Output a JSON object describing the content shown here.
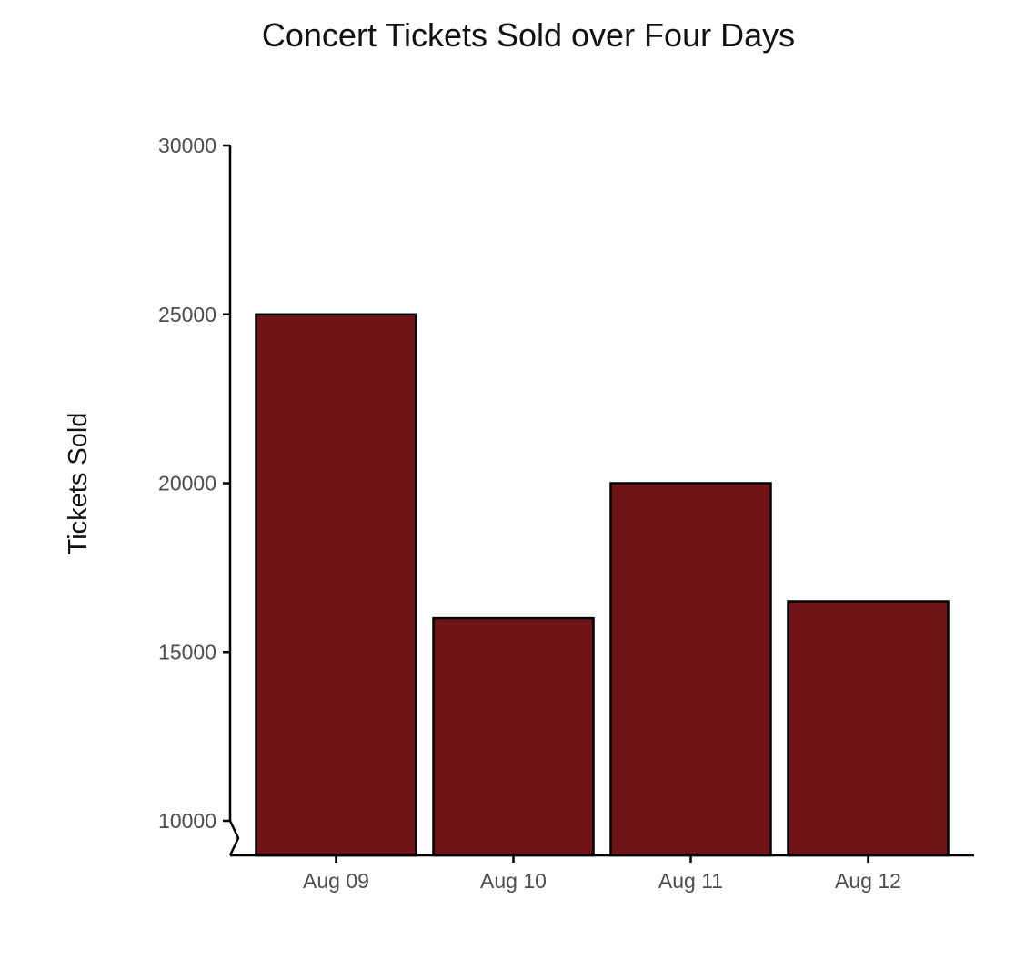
{
  "chart_data": {
    "type": "bar",
    "title": "Concert Tickets Sold over Four Days",
    "xlabel": "",
    "ylabel": "Tickets Sold",
    "categories": [
      "Aug 09",
      "Aug 10",
      "Aug 11",
      "Aug 12"
    ],
    "values": [
      25000,
      16000,
      20000,
      16500
    ],
    "ylim": [
      9000,
      30000
    ],
    "yticks": [
      10000,
      15000,
      20000,
      25000,
      30000
    ],
    "y_axis_break": true,
    "grid": false,
    "legend": "none",
    "bar_color": "#701418",
    "bar_outline_color": "#000000"
  }
}
